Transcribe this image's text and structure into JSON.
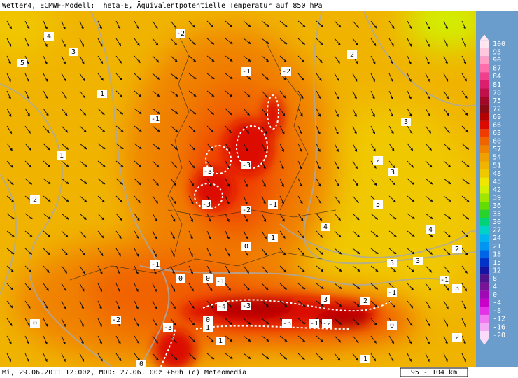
{
  "header": {
    "title": "Wetter4, ECMWF-Modell: Theta-E, Äquivalentpotentielle Temperatur auf 850 hPa"
  },
  "footer": {
    "left": "Mi, 29.06.2011 12:00z, MOD: 27.06. 00z +60h (c) Meteomedia",
    "scale": "95 - 104 km"
  },
  "legend": [
    {
      "value": 100,
      "color": "#ffe6f0"
    },
    {
      "value": 95,
      "color": "#ffc8dc"
    },
    {
      "value": 90,
      "color": "#ff9ec4"
    },
    {
      "value": 87,
      "color": "#ff6eaa"
    },
    {
      "value": 84,
      "color": "#f0408c"
    },
    {
      "value": 81,
      "color": "#dc1e6e"
    },
    {
      "value": 78,
      "color": "#c0104a"
    },
    {
      "value": 75,
      "color": "#a00a28"
    },
    {
      "value": 72,
      "color": "#8c0a14"
    },
    {
      "value": 69,
      "color": "#b40000"
    },
    {
      "value": 66,
      "color": "#dc0a00"
    },
    {
      "value": 63,
      "color": "#f03c00"
    },
    {
      "value": 60,
      "color": "#f06400"
    },
    {
      "value": 57,
      "color": "#f08200"
    },
    {
      "value": 54,
      "color": "#f0a000"
    },
    {
      "value": 51,
      "color": "#f0b400"
    },
    {
      "value": 48,
      "color": "#f0c800"
    },
    {
      "value": 45,
      "color": "#f0e600"
    },
    {
      "value": 42,
      "color": "#d2f000"
    },
    {
      "value": 39,
      "color": "#a0e600"
    },
    {
      "value": 36,
      "color": "#64dc00"
    },
    {
      "value": 33,
      "color": "#28d228"
    },
    {
      "value": 30,
      "color": "#00d278"
    },
    {
      "value": 27,
      "color": "#00d2c8"
    },
    {
      "value": 24,
      "color": "#00b4f0"
    },
    {
      "value": 21,
      "color": "#0096f0"
    },
    {
      "value": 18,
      "color": "#0064e6"
    },
    {
      "value": 15,
      "color": "#0032c8"
    },
    {
      "value": 12,
      "color": "#1414a0"
    },
    {
      "value": 8,
      "color": "#50148c"
    },
    {
      "value": 4,
      "color": "#781496"
    },
    {
      "value": 0,
      "color": "#a00ab4"
    },
    {
      "value": -4,
      "color": "#c800c8"
    },
    {
      "value": -8,
      "color": "#e632e6"
    },
    {
      "value": -12,
      "color": "#f078f0"
    },
    {
      "value": -16,
      "color": "#f5aaf5"
    },
    {
      "value": -20,
      "color": "#fadcfa"
    }
  ],
  "contours": [
    4,
    3,
    5,
    -2,
    1,
    -1,
    -1,
    -2,
    2,
    3,
    1,
    2,
    3,
    -3,
    -3,
    2,
    -3,
    -2,
    -1,
    5,
    4,
    1,
    0,
    4,
    2,
    5,
    3,
    -1,
    0,
    -1,
    0,
    -1,
    3,
    -1,
    -4,
    -3,
    3,
    2,
    0,
    -2,
    -3,
    0,
    -3,
    -1,
    -2,
    0,
    1,
    1,
    2,
    1,
    0
  ]
}
